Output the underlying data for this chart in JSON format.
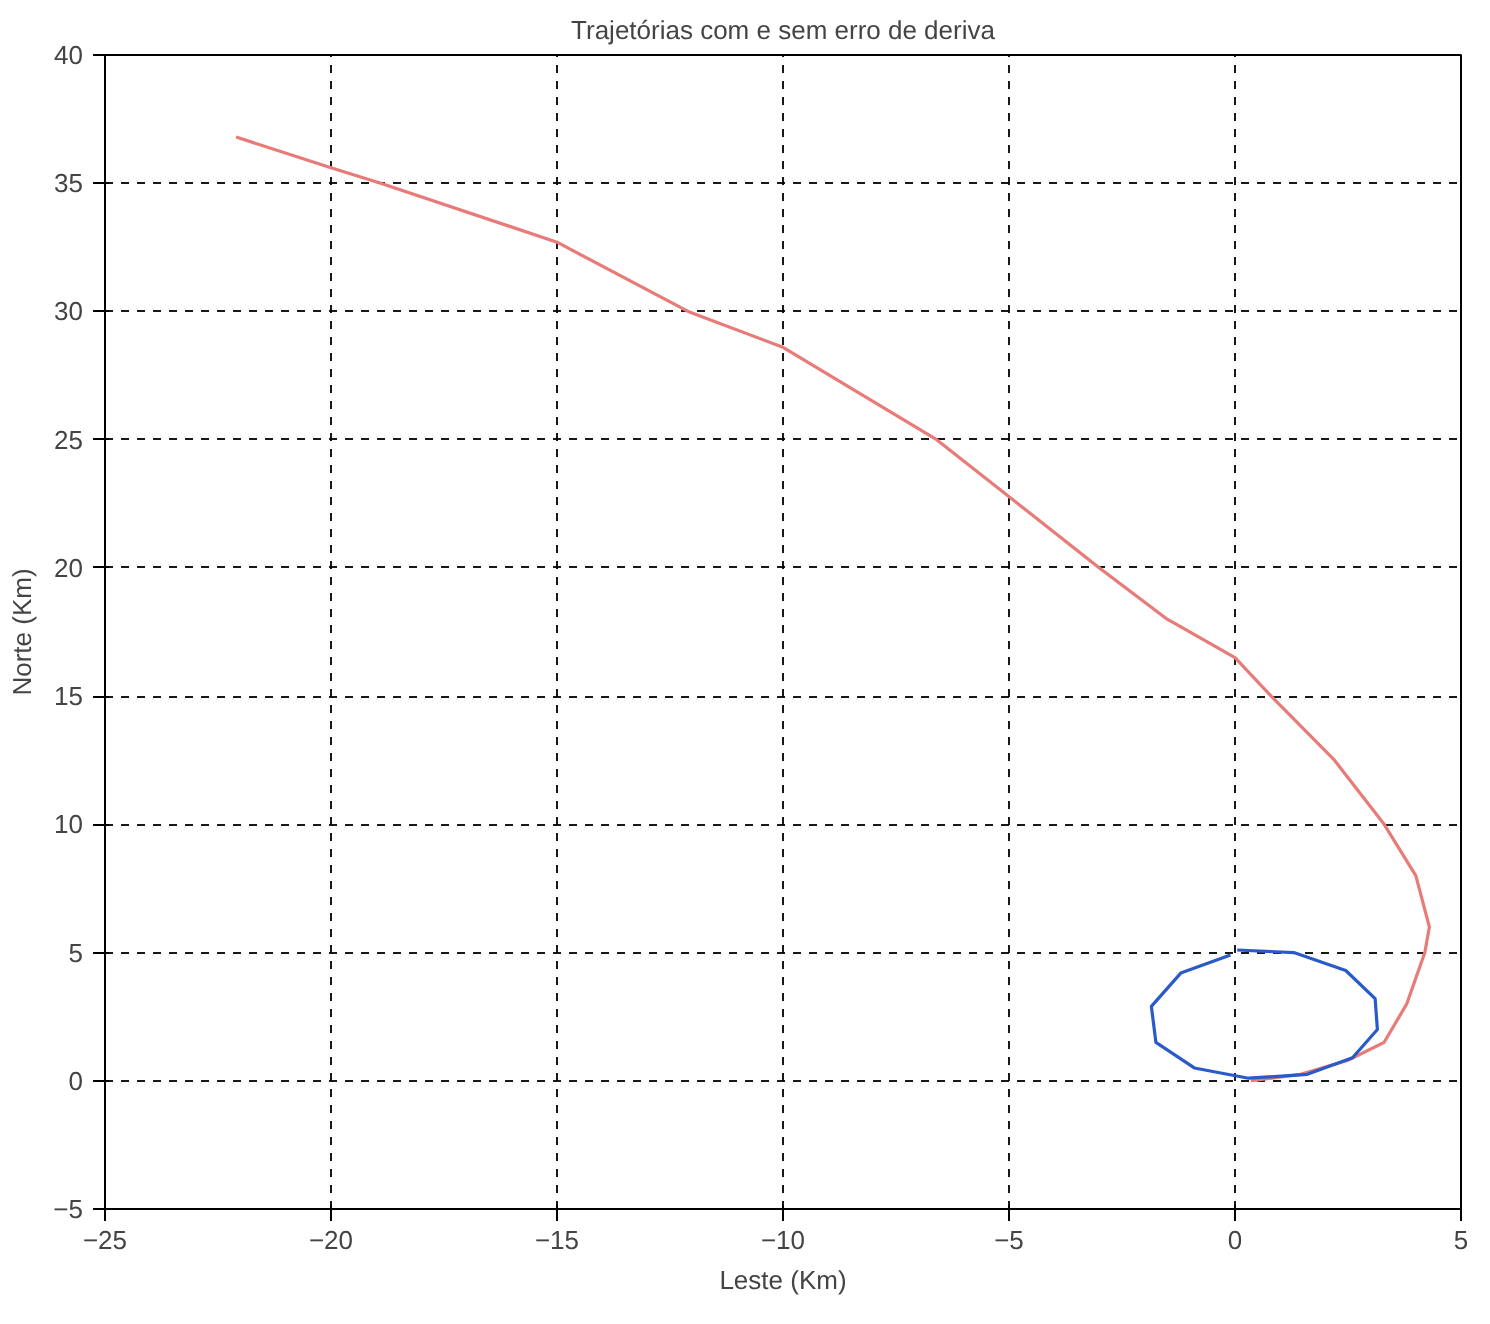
{
  "chart_data": {
    "type": "line",
    "title": "Trajetórias com e sem erro de deriva",
    "xlabel": "Leste (Km)",
    "ylabel": "Norte (Km)",
    "xlim": [
      -25,
      5
    ],
    "ylim": [
      -5,
      40
    ],
    "xticks": [
      -25,
      -20,
      -15,
      -10,
      -5,
      0,
      5
    ],
    "yticks": [
      -5,
      0,
      5,
      10,
      15,
      20,
      25,
      30,
      35,
      40
    ],
    "grid": true,
    "line_style": "solid",
    "marker": "none",
    "series": [
      {
        "color": "#e87a78",
        "x": [
          -22.1,
          -20,
          -18.9,
          -15,
          -12.1,
          -10,
          -6.6,
          -3.0,
          -1.5,
          0,
          0.8,
          2.2,
          3.3,
          4.0,
          4.3,
          4.2,
          3.8,
          3.3,
          2.5,
          1.45,
          0.35
        ],
        "values": [
          36.8,
          35.6,
          35,
          32.7,
          30,
          28.6,
          25,
          20,
          18,
          16.5,
          15,
          12.5,
          10,
          8,
          6,
          5,
          3,
          1.5,
          0.8,
          0.25,
          0
        ]
      },
      {
        "color": "#2a5ac8",
        "x": [
          0.05,
          1.3,
          2.45,
          3.1,
          3.15,
          2.6,
          1.6,
          0.3,
          -0.9,
          -1.75,
          -1.85,
          -1.2,
          -0.1
        ],
        "values": [
          5.1,
          5.0,
          4.3,
          3.2,
          2.0,
          0.9,
          0.25,
          0.1,
          0.5,
          1.5,
          2.9,
          4.2,
          4.9
        ]
      }
    ]
  }
}
